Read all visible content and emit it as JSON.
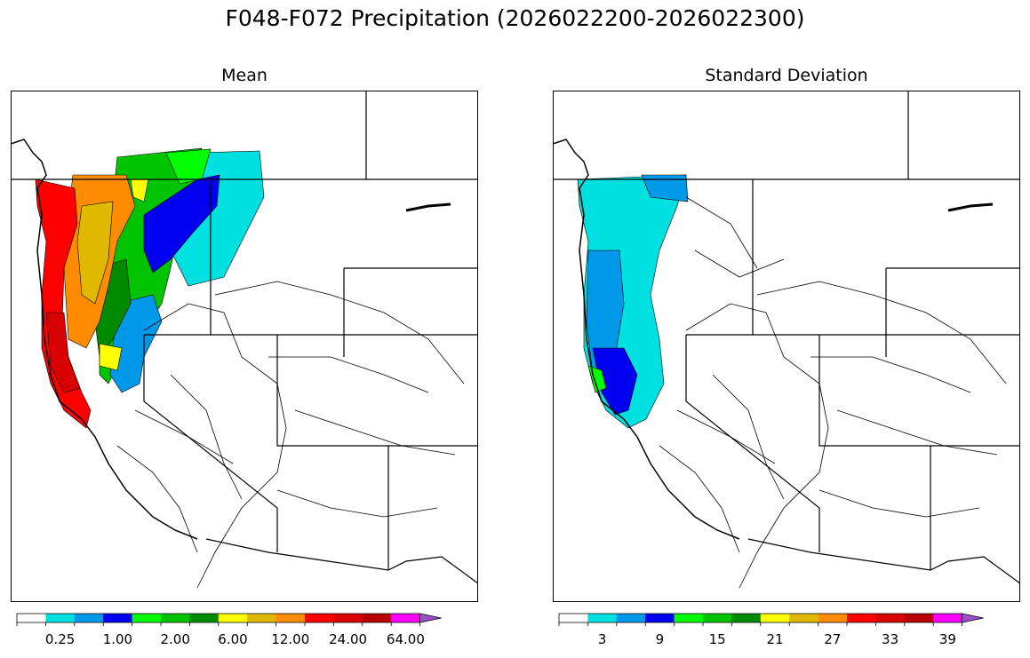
{
  "title": "F048-F072 Precipitation (2026022200-2026022300)",
  "panels": [
    {
      "title": "Mean",
      "colorbar": {
        "colors": [
          "#ffffff",
          "#00e0e0",
          "#0098e8",
          "#0000f0",
          "#00ff00",
          "#00c400",
          "#008a00",
          "#ffff00",
          "#e0b800",
          "#ff8c00",
          "#ff0000",
          "#d80000",
          "#b80000",
          "#ff00ff",
          "#9a50c8"
        ],
        "tick_labels": [
          "0.25",
          "1.00",
          "2.00",
          "6.00",
          "12.00",
          "24.00",
          "64.00"
        ]
      }
    },
    {
      "title": "Standard Deviation",
      "colorbar": {
        "colors": [
          "#ffffff",
          "#00e0e0",
          "#0098e8",
          "#0000f0",
          "#00ff00",
          "#00c400",
          "#008a00",
          "#ffff00",
          "#e0b800",
          "#ff8c00",
          "#ff0000",
          "#d80000",
          "#b80000",
          "#ff00ff",
          "#9a50c8"
        ],
        "tick_labels": [
          "3",
          "9",
          "15",
          "21",
          "27",
          "33",
          "39"
        ]
      }
    }
  ]
}
